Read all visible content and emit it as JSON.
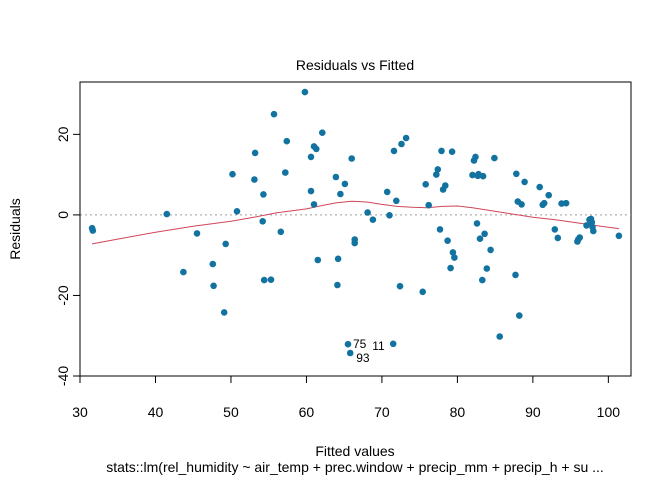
{
  "chart_data": {
    "type": "scatter",
    "title": "Residuals vs Fitted",
    "xlabel": "Fitted values",
    "ylabel": "Residuals",
    "subtitle": "stats::lm(rel_humidity ~ air_temp + prec.window + precip_mm + precip_h + su ...",
    "xlim": [
      30,
      103
    ],
    "ylim": [
      -40,
      33
    ],
    "x_ticks": [
      30,
      40,
      50,
      60,
      70,
      80,
      90,
      100
    ],
    "y_ticks": [
      -40,
      -20,
      0,
      20
    ],
    "grid": false,
    "reference_line": {
      "y": 0,
      "style": "dotted",
      "color": "#9e9e9e"
    },
    "point_color": "#1273a0",
    "smooth_color": "#d0465a",
    "points": [
      [
        31.6,
        -3.3
      ],
      [
        31.7,
        -3.9
      ],
      [
        41.5,
        0.2
      ],
      [
        43.7,
        -14.2
      ],
      [
        45.5,
        -4.6
      ],
      [
        47.6,
        -12.2
      ],
      [
        47.7,
        -17.6
      ],
      [
        49.1,
        -24.2
      ],
      [
        49.3,
        -7.2
      ],
      [
        50.2,
        10.1
      ],
      [
        50.8,
        0.9
      ],
      [
        53.1,
        8.8
      ],
      [
        53.2,
        15.4
      ],
      [
        54.2,
        -1.6
      ],
      [
        54.3,
        5.1
      ],
      [
        54.4,
        -16.2
      ],
      [
        55.3,
        -16.1
      ],
      [
        55.7,
        25.0
      ],
      [
        56.6,
        -4.2
      ],
      [
        57.2,
        10.5
      ],
      [
        57.4,
        18.3
      ],
      [
        59.8,
        30.5
      ],
      [
        60.6,
        14.4
      ],
      [
        60.6,
        5.9
      ],
      [
        61.0,
        17.0
      ],
      [
        61.0,
        2.6
      ],
      [
        61.3,
        16.4
      ],
      [
        61.5,
        -11.2
      ],
      [
        62.1,
        20.4
      ],
      [
        63.9,
        9.4
      ],
      [
        64.1,
        -17.4
      ],
      [
        64.2,
        -10.9
      ],
      [
        64.5,
        5.2
      ],
      [
        65.1,
        7.7
      ],
      [
        65.5,
        -32.1
      ],
      [
        65.8,
        -34.3
      ],
      [
        66.0,
        14.0
      ],
      [
        66.4,
        -6.1
      ],
      [
        66.4,
        -7.0
      ],
      [
        68.1,
        0.6
      ],
      [
        68.8,
        -1.2
      ],
      [
        70.7,
        5.7
      ],
      [
        71.0,
        -0.1
      ],
      [
        71.5,
        -32.0
      ],
      [
        71.6,
        15.9
      ],
      [
        71.9,
        3.5
      ],
      [
        72.4,
        -17.7
      ],
      [
        72.6,
        17.6
      ],
      [
        73.2,
        19.1
      ],
      [
        75.4,
        -19.1
      ],
      [
        75.8,
        7.6
      ],
      [
        76.2,
        2.4
      ],
      [
        77.2,
        10.0
      ],
      [
        77.4,
        11.3
      ],
      [
        77.7,
        -3.6
      ],
      [
        77.9,
        15.9
      ],
      [
        78.1,
        6.3
      ],
      [
        78.4,
        7.3
      ],
      [
        78.7,
        -6.4
      ],
      [
        79.1,
        -13.2
      ],
      [
        79.3,
        15.7
      ],
      [
        79.4,
        -9.3
      ],
      [
        79.6,
        -10.6
      ],
      [
        82.0,
        9.9
      ],
      [
        82.2,
        13.5
      ],
      [
        82.4,
        14.4
      ],
      [
        82.6,
        -2.1
      ],
      [
        82.7,
        9.7
      ],
      [
        82.8,
        10.1
      ],
      [
        83.0,
        -5.9
      ],
      [
        83.3,
        -16.2
      ],
      [
        83.4,
        9.6
      ],
      [
        83.6,
        -4.7
      ],
      [
        83.9,
        -13.3
      ],
      [
        84.4,
        -8.7
      ],
      [
        84.9,
        14.1
      ],
      [
        85.6,
        -30.2
      ],
      [
        87.7,
        -14.9
      ],
      [
        87.8,
        10.2
      ],
      [
        88.0,
        3.3
      ],
      [
        88.2,
        -25.0
      ],
      [
        88.5,
        2.6
      ],
      [
        88.9,
        8.2
      ],
      [
        90.9,
        6.9
      ],
      [
        91.3,
        2.5
      ],
      [
        91.5,
        2.9
      ],
      [
        92.1,
        4.9
      ],
      [
        92.9,
        -3.6
      ],
      [
        93.3,
        -5.7
      ],
      [
        93.8,
        2.8
      ],
      [
        94.4,
        2.9
      ],
      [
        95.9,
        -6.6
      ],
      [
        96.0,
        -6.1
      ],
      [
        96.2,
        -5.6
      ],
      [
        97.1,
        -2.6
      ],
      [
        97.5,
        -1.2
      ],
      [
        97.7,
        -1.0
      ],
      [
        97.8,
        -1.8
      ],
      [
        97.9,
        -3.0
      ],
      [
        98.0,
        -4.0
      ],
      [
        101.4,
        -5.2
      ]
    ],
    "smooth": [
      [
        31.6,
        -7.2
      ],
      [
        35,
        -6.0
      ],
      [
        40,
        -4.3
      ],
      [
        45,
        -2.8
      ],
      [
        50,
        -1.6
      ],
      [
        53,
        -0.6
      ],
      [
        56,
        0.5
      ],
      [
        60,
        1.5
      ],
      [
        62,
        2.3
      ],
      [
        64,
        3.0
      ],
      [
        66,
        3.4
      ],
      [
        68,
        3.2
      ],
      [
        70,
        2.6
      ],
      [
        72,
        2.1
      ],
      [
        74,
        1.9
      ],
      [
        76,
        1.8
      ],
      [
        78,
        2.1
      ],
      [
        80,
        2.2
      ],
      [
        82,
        1.8
      ],
      [
        84,
        1.2
      ],
      [
        86,
        0.6
      ],
      [
        88,
        0.0
      ],
      [
        90,
        -0.6
      ],
      [
        93,
        -1.2
      ],
      [
        96,
        -2.0
      ],
      [
        99,
        -2.8
      ],
      [
        101.4,
        -3.4
      ]
    ],
    "outlier_labels": [
      {
        "label": "75",
        "x": 65.5,
        "y": -32.1,
        "dx": 5,
        "dy": 0
      },
      {
        "label": "11",
        "x": 71.5,
        "y": -32.0,
        "dx": -21,
        "dy": 2
      },
      {
        "label": "93",
        "x": 65.8,
        "y": -34.3,
        "dx": 6,
        "dy": 5
      }
    ]
  }
}
